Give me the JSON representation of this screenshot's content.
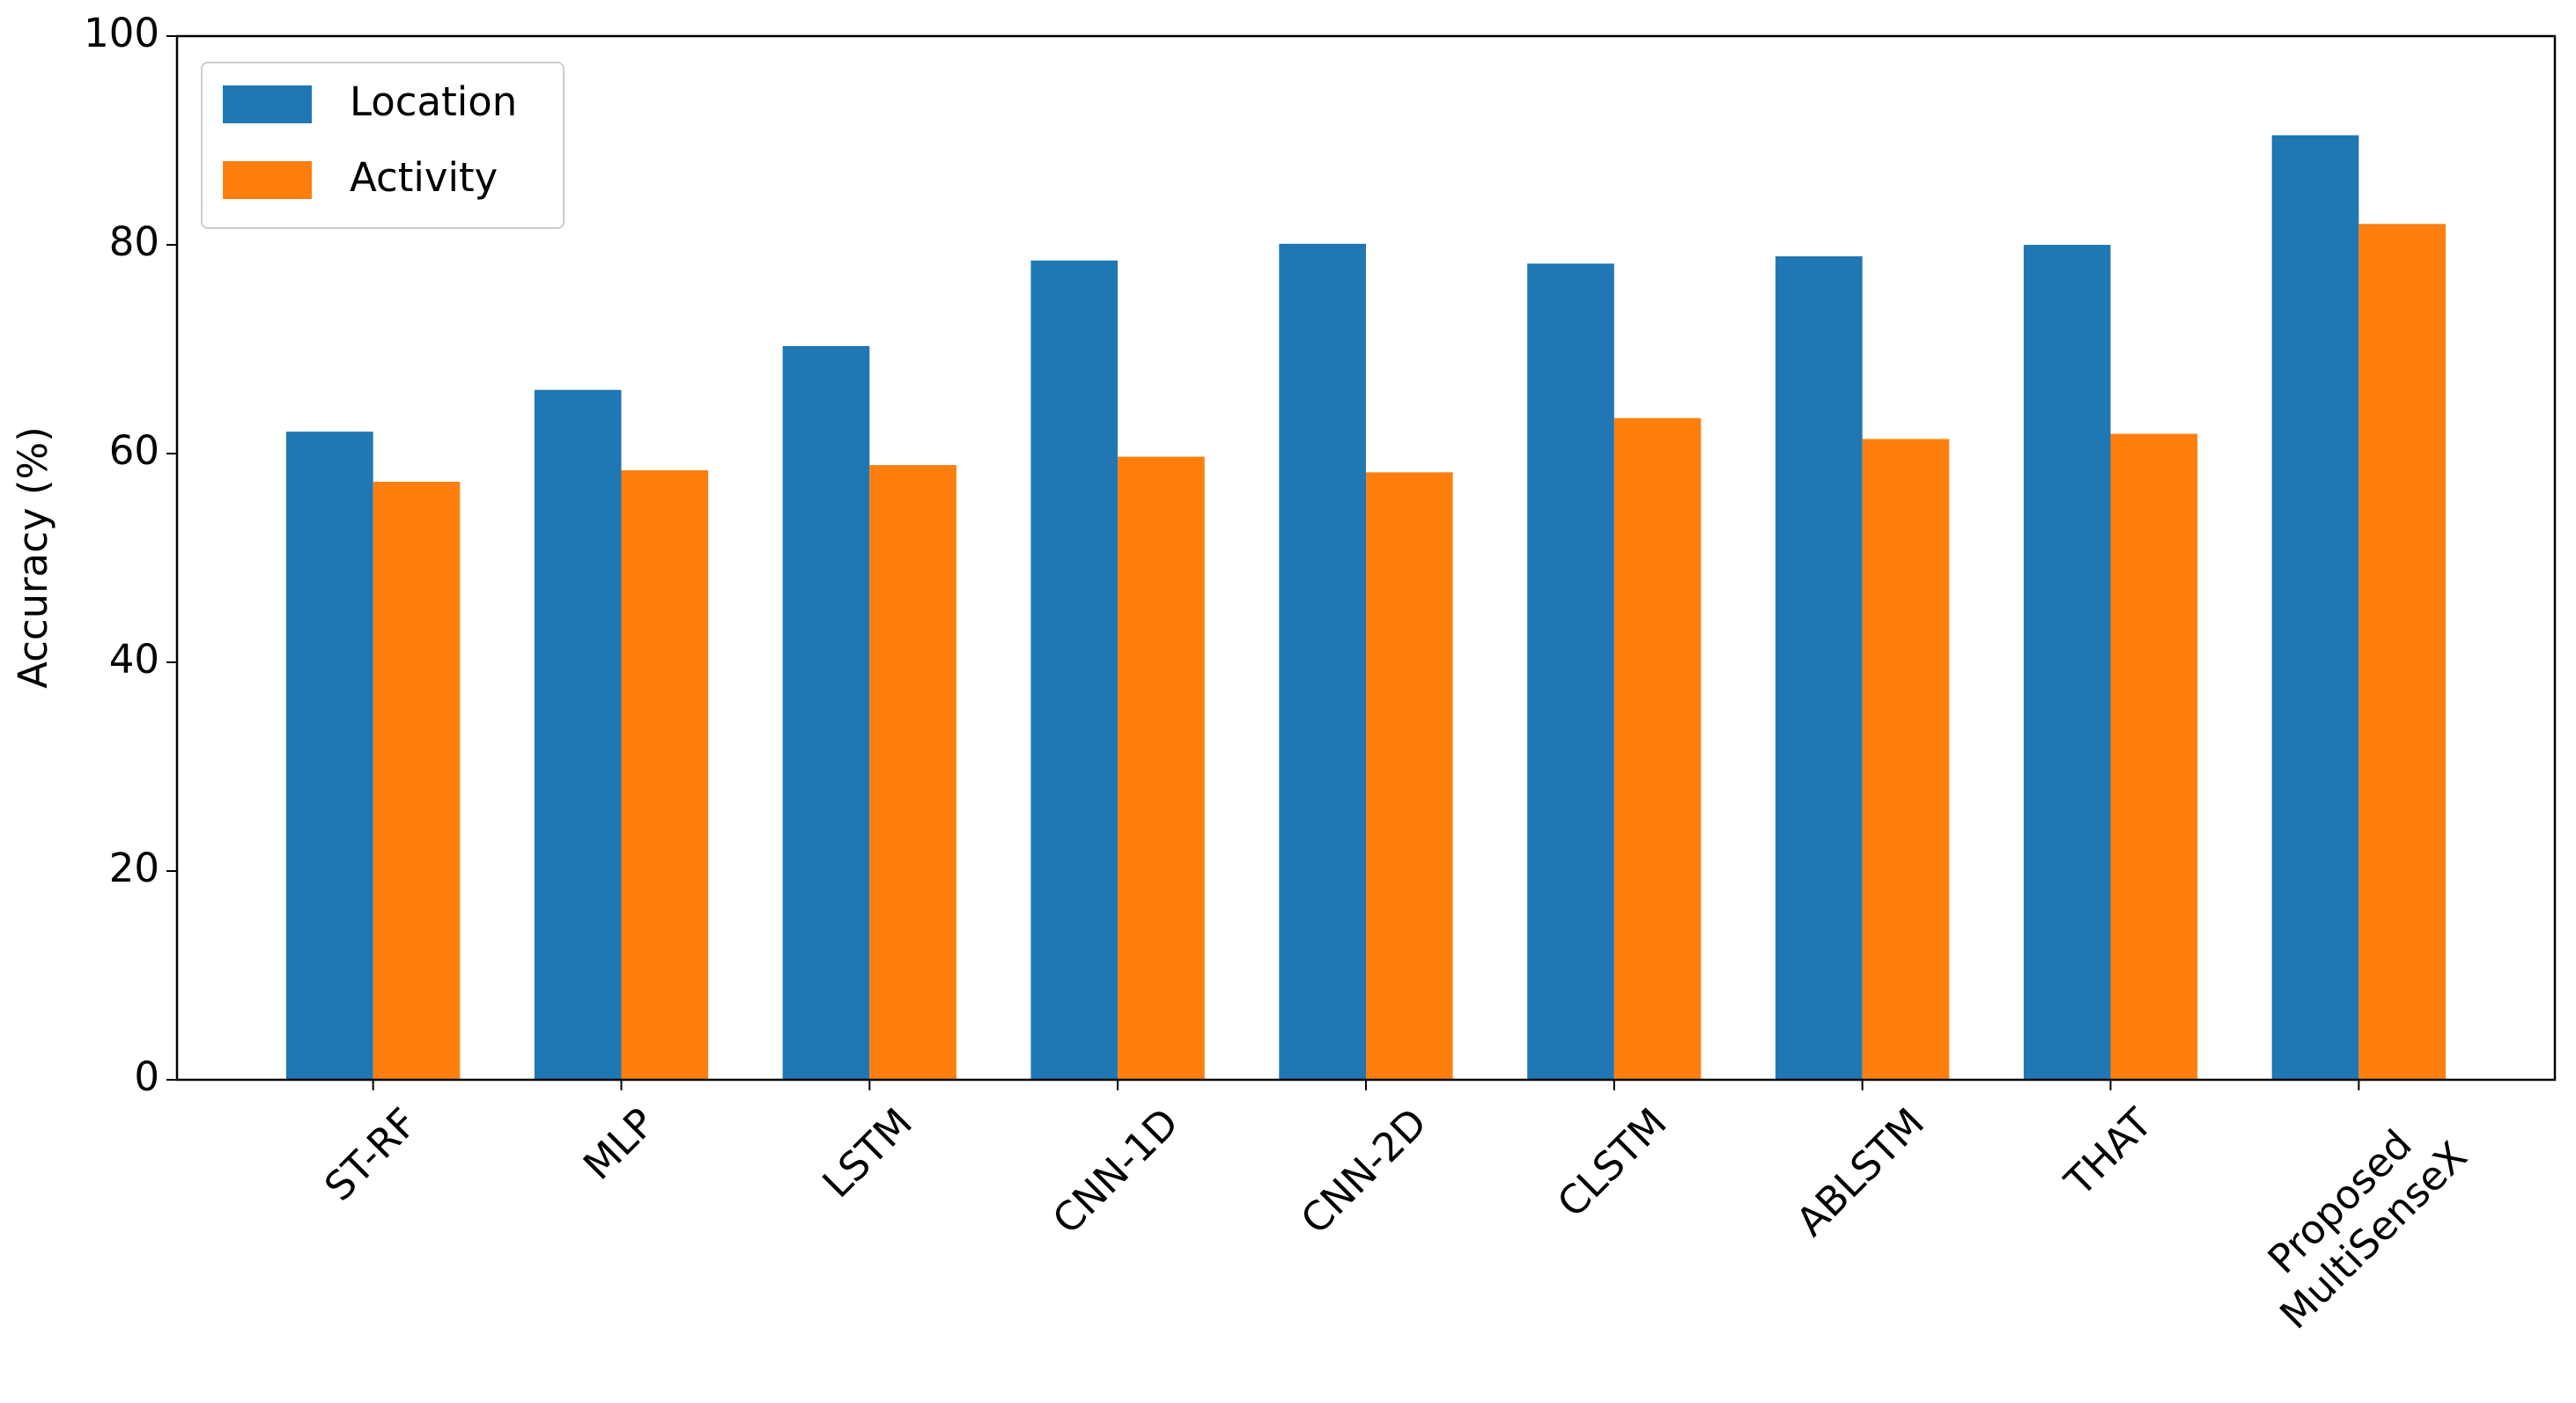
{
  "chart_data": {
    "type": "bar",
    "ylabel": "Accuracy (%)",
    "categories": [
      "ST-RF",
      "MLP",
      "LSTM",
      "CNN-1D",
      "CNN-2D",
      "CLSTM",
      "ABLSTM",
      "THAT",
      "Proposed\nMultiSenseX"
    ],
    "series": [
      {
        "name": "Location",
        "color": "#1f77b4",
        "values": [
          62.1,
          66.1,
          70.3,
          78.5,
          80.1,
          78.2,
          78.9,
          80.0,
          90.5
        ]
      },
      {
        "name": "Activity",
        "color": "#ff7f0e",
        "values": [
          57.3,
          58.4,
          58.9,
          59.7,
          58.2,
          63.4,
          61.4,
          61.9,
          82.0
        ]
      }
    ],
    "ylim": [
      0,
      100
    ],
    "yticks": [
      0,
      20,
      40,
      60,
      80,
      100
    ],
    "legend": "upper left",
    "grid": false
  }
}
